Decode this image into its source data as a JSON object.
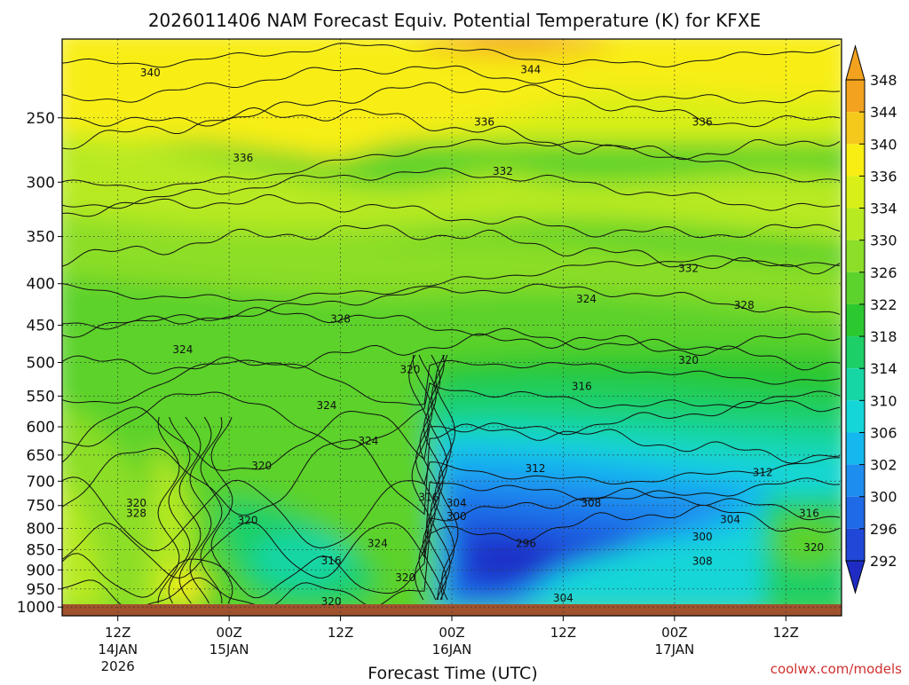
{
  "chart_data": {
    "type": "heatmap",
    "title": "2026011406 NAM Forecast Equiv. Potential Temperature (K) for KFXE",
    "xlabel": "Forecast Time (UTC)",
    "ylabel": "",
    "y_axis": {
      "scale": "log-pressure",
      "reversed": true,
      "range": [
        1025,
        200
      ],
      "ticks": [
        250,
        300,
        350,
        400,
        450,
        500,
        550,
        600,
        650,
        700,
        750,
        800,
        850,
        900,
        950,
        1000
      ]
    },
    "x_axis": {
      "range": [
        "14JAN 06Z",
        "17JAN 18Z"
      ],
      "ticks": [
        {
          "label": "12Z",
          "sub": "14JAN",
          "sub2": "2026",
          "hour": 6
        },
        {
          "label": "00Z",
          "sub": "15JAN",
          "sub2": "",
          "hour": 18
        },
        {
          "label": "12Z",
          "sub": "",
          "sub2": "",
          "hour": 30
        },
        {
          "label": "00Z",
          "sub": "16JAN",
          "sub2": "",
          "hour": 42
        },
        {
          "label": "12Z",
          "sub": "",
          "sub2": "",
          "hour": 54
        },
        {
          "label": "00Z",
          "sub": "17JAN",
          "sub2": "",
          "hour": 66
        },
        {
          "label": "12Z",
          "sub": "",
          "sub2": "",
          "hour": 78
        }
      ]
    },
    "colorbar": {
      "unit": "K",
      "levels": [
        348,
        344,
        340,
        336,
        334,
        330,
        326,
        322,
        318,
        314,
        310,
        306,
        302,
        300,
        296,
        292
      ],
      "colors": [
        "#f2a21e",
        "#f5c81c",
        "#f8ee14",
        "#d9f018",
        "#b8ea22",
        "#8cde28",
        "#5cd22c",
        "#2cc830",
        "#1ccf66",
        "#17d6a6",
        "#14d6d8",
        "#14b8ee",
        "#1d8ef0",
        "#1f6ae6",
        "#1f48d8",
        "#1e2cc4"
      ]
    },
    "contour_labels": [
      {
        "text": "340",
        "hour": 9.5,
        "p": 220
      },
      {
        "text": "344",
        "hour": 50.5,
        "p": 218
      },
      {
        "text": "336",
        "hour": 45.5,
        "p": 253
      },
      {
        "text": "336",
        "hour": 69,
        "p": 253
      },
      {
        "text": "336",
        "hour": 19.5,
        "p": 280
      },
      {
        "text": "332",
        "hour": 47.5,
        "p": 291
      },
      {
        "text": "332",
        "hour": 67.5,
        "p": 383
      },
      {
        "text": "324",
        "hour": 56.5,
        "p": 418
      },
      {
        "text": "328",
        "hour": 73.5,
        "p": 425
      },
      {
        "text": "328",
        "hour": 30,
        "p": 442
      },
      {
        "text": "324",
        "hour": 13,
        "p": 482
      },
      {
        "text": "320",
        "hour": 67.5,
        "p": 497
      },
      {
        "text": "320",
        "hour": 37.5,
        "p": 510
      },
      {
        "text": "316",
        "hour": 56,
        "p": 535
      },
      {
        "text": "324",
        "hour": 28.5,
        "p": 565
      },
      {
        "text": "324",
        "hour": 33,
        "p": 625
      },
      {
        "text": "320",
        "hour": 21.5,
        "p": 670
      },
      {
        "text": "312",
        "hour": 51,
        "p": 675
      },
      {
        "text": "312",
        "hour": 75.5,
        "p": 683
      },
      {
        "text": "316",
        "hour": 39.5,
        "p": 733
      },
      {
        "text": "304",
        "hour": 42.5,
        "p": 745
      },
      {
        "text": "308",
        "hour": 57,
        "p": 745
      },
      {
        "text": "320",
        "hour": 8,
        "p": 745
      },
      {
        "text": "328",
        "hour": 8,
        "p": 767
      },
      {
        "text": "300",
        "hour": 42.5,
        "p": 773
      },
      {
        "text": "316",
        "hour": 80.5,
        "p": 767
      },
      {
        "text": "304",
        "hour": 72,
        "p": 780
      },
      {
        "text": "320",
        "hour": 20,
        "p": 782
      },
      {
        "text": "300",
        "hour": 69,
        "p": 820
      },
      {
        "text": "296",
        "hour": 50,
        "p": 835
      },
      {
        "text": "324",
        "hour": 34,
        "p": 835
      },
      {
        "text": "320",
        "hour": 81,
        "p": 845
      },
      {
        "text": "316",
        "hour": 29,
        "p": 877
      },
      {
        "text": "308",
        "hour": 69,
        "p": 878
      },
      {
        "text": "320",
        "hour": 37,
        "p": 920
      },
      {
        "text": "304",
        "hour": 54,
        "p": 975
      },
      {
        "text": "320",
        "hour": 29,
        "p": 985
      }
    ]
  },
  "footer": {
    "credit": "coolwx.com/models"
  }
}
